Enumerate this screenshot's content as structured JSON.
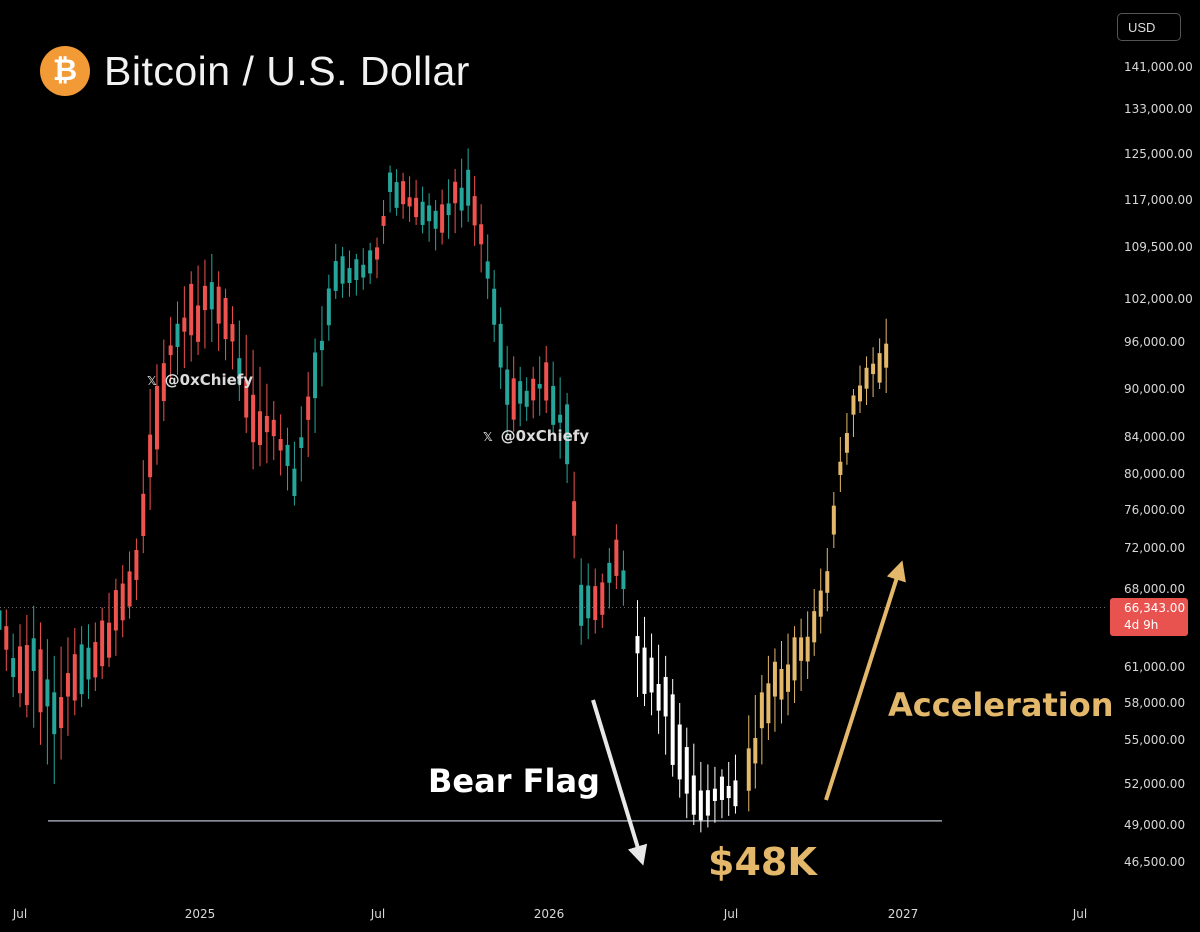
{
  "header": {
    "title": "Bitcoin / U.S. Dollar",
    "logo_glyph": "₿",
    "logo_icon": "bitcoin-icon",
    "currency": "USD"
  },
  "watermarks": [
    {
      "icon": "x-logo-icon",
      "glyph": "𝕏",
      "text": "@0xChiefy"
    },
    {
      "icon": "x-logo-icon",
      "glyph": "𝕏",
      "text": "@0xChiefy"
    }
  ],
  "price_badge": {
    "price": "66,343.00",
    "countdown": "4d 9h",
    "color": "#e8534f"
  },
  "annotations": {
    "bear_flag": "Bear Flag",
    "target": "$48K",
    "acceleration": "Acceleration"
  },
  "colors": {
    "up": "#26a69a",
    "down": "#ef5350",
    "projection_bear": "#ffffff",
    "projection_bull": "#e3b86a",
    "support_line": "#9aa0aa"
  },
  "chart_data": {
    "type": "candlestick",
    "title": "Bitcoin / U.S. Dollar",
    "y_axis": {
      "ticks": [
        "141,000.00",
        "133,000.00",
        "125,000.00",
        "117,000.00",
        "109,500.00",
        "102,000.00",
        "96,000.00",
        "90,000.00",
        "84,000.00",
        "80,000.00",
        "76,000.00",
        "72,000.00",
        "68,000.00",
        "61,000.00",
        "58,000.00",
        "55,000.00",
        "52,000.00",
        "49,000.00",
        "46,500.00"
      ],
      "values": [
        141000,
        133000,
        125000,
        117000,
        109500,
        102000,
        96000,
        90000,
        84000,
        80000,
        76000,
        72000,
        68000,
        61000,
        58000,
        55000,
        52000,
        49000,
        46500
      ],
      "scale": "log",
      "position": "right"
    },
    "x_axis": {
      "ticks": [
        "Jul",
        "2025",
        "Jul",
        "2026",
        "Jul",
        "2027",
        "Jul"
      ],
      "dates": [
        "2024-07-01",
        "2025-01-01",
        "2025-07-01",
        "2026-01-01",
        "2026-07-01",
        "2027-01-01",
        "2027-07-01"
      ]
    },
    "current_price": 66343,
    "support_level": 49300,
    "series": [
      {
        "name": "",
        "kind": "historical",
        "points": [
          [
            "2024-06-03",
            70500,
            65000
          ],
          [
            "2024-06-24",
            64000,
            58500
          ],
          [
            "2024-07-15",
            66500,
            56000
          ],
          [
            "2024-08-05",
            62000,
            52000
          ],
          [
            "2024-08-26",
            64500,
            57000
          ],
          [
            "2024-09-16",
            65000,
            59000
          ],
          [
            "2024-10-07",
            69000,
            62000
          ],
          [
            "2024-10-28",
            73000,
            67000
          ],
          [
            "2024-11-11",
            90000,
            76000
          ],
          [
            "2024-12-02",
            99500,
            91000
          ],
          [
            "2024-12-23",
            106000,
            93500
          ],
          [
            "2025-01-13",
            108500,
            96000
          ],
          [
            "2025-02-03",
            101000,
            92500
          ],
          [
            "2025-02-24",
            95000,
            80500
          ],
          [
            "2025-03-17",
            88500,
            81500
          ],
          [
            "2025-04-07",
            83500,
            76500
          ],
          [
            "2025-04-28",
            96500,
            84500
          ],
          [
            "2025-05-19",
            110000,
            102000
          ],
          [
            "2025-06-09",
            108500,
            102500
          ],
          [
            "2025-06-30",
            111000,
            105000
          ],
          [
            "2025-07-14",
            123000,
            115000
          ],
          [
            "2025-08-11",
            120500,
            113000
          ],
          [
            "2025-09-01",
            117000,
            109000
          ],
          [
            "2025-10-06",
            126000,
            113500
          ],
          [
            "2025-10-27",
            111500,
            102000
          ],
          [
            "2025-11-17",
            95500,
            84000
          ],
          [
            "2025-12-08",
            91500,
            86000
          ],
          [
            "2025-12-29",
            95500,
            87000
          ],
          [
            "2026-01-19",
            89500,
            79000
          ],
          [
            "2026-02-02",
            71000,
            63000
          ],
          [
            "2026-02-23",
            69500,
            64500
          ],
          [
            "2026-03-09",
            74500,
            68000
          ],
          [
            "2026-03-23",
            69000,
            65000
          ]
        ]
      },
      {
        "name": "",
        "kind": "projection-bear",
        "points": [
          [
            "2026-03-30",
            67000,
            58500
          ],
          [
            "2026-04-13",
            64000,
            57000
          ],
          [
            "2026-04-27",
            62000,
            54000
          ],
          [
            "2026-05-18",
            56000,
            49500
          ],
          [
            "2026-06-01",
            53500,
            48500
          ],
          [
            "2026-06-22",
            53000,
            49500
          ],
          [
            "2026-07-13",
            54500,
            50000
          ]
        ]
      },
      {
        "name": "",
        "kind": "projection-bull",
        "points": [
          [
            "2026-07-20",
            57000,
            50000
          ],
          [
            "2026-08-10",
            62000,
            55000
          ],
          [
            "2026-08-31",
            64000,
            57000
          ],
          [
            "2026-09-21",
            66000,
            60000
          ],
          [
            "2026-10-12",
            72000,
            66000
          ],
          [
            "2026-10-26",
            84000,
            78000
          ],
          [
            "2026-11-16",
            93000,
            87000
          ],
          [
            "2026-12-07",
            96500,
            90000
          ],
          [
            "2026-12-21",
            102000,
            89000
          ]
        ]
      }
    ]
  }
}
